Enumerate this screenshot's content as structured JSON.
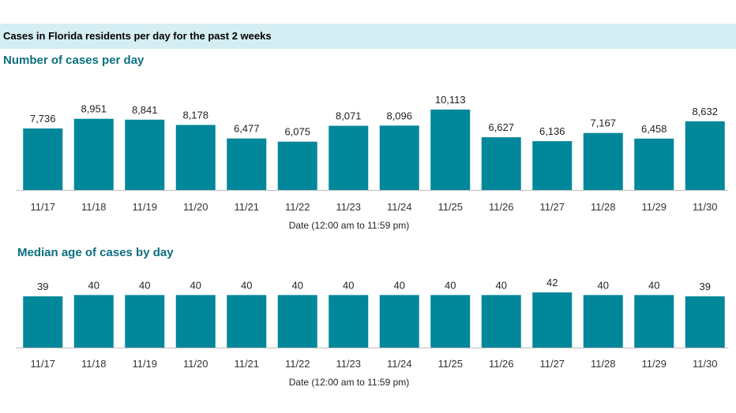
{
  "banner": {
    "title": "Cases in Florida residents per day for the past 2 weeks"
  },
  "colors": {
    "bar": "#00879a",
    "axis": "#bdbdbd",
    "banner_bg": "#d5eef3",
    "heading": "#0d6f80"
  },
  "chart_data": [
    {
      "type": "bar",
      "title": "Number of cases per day",
      "xlabel": "Date (12:00 am to 11:59 pm)",
      "ylabel": "",
      "categories": [
        "11/17",
        "11/18",
        "11/19",
        "11/20",
        "11/21",
        "11/22",
        "11/23",
        "11/24",
        "11/25",
        "11/26",
        "11/27",
        "11/28",
        "11/29",
        "11/30"
      ],
      "values": [
        7736,
        8951,
        8841,
        8178,
        6477,
        6075,
        8071,
        8096,
        10113,
        6627,
        6136,
        7167,
        6458,
        8632
      ],
      "value_labels": [
        "7,736",
        "8,951",
        "8,841",
        "8,178",
        "6,477",
        "6,075",
        "8,071",
        "8,096",
        "10,113",
        "6,627",
        "6,136",
        "7,167",
        "6,458",
        "8,632"
      ],
      "ylim": [
        0,
        10113
      ],
      "grid": false
    },
    {
      "type": "bar",
      "title": "Median age of cases by day",
      "xlabel": "Date (12:00 am to 11:59 pm)",
      "ylabel": "",
      "categories": [
        "11/17",
        "11/18",
        "11/19",
        "11/20",
        "11/21",
        "11/22",
        "11/23",
        "11/24",
        "11/25",
        "11/26",
        "11/27",
        "11/28",
        "11/29",
        "11/30"
      ],
      "values": [
        39,
        40,
        40,
        40,
        40,
        40,
        40,
        40,
        40,
        40,
        42,
        40,
        40,
        39
      ],
      "value_labels": [
        "39",
        "40",
        "40",
        "40",
        "40",
        "40",
        "40",
        "40",
        "40",
        "40",
        "42",
        "40",
        "40",
        "39"
      ],
      "ylim": [
        0,
        42
      ],
      "grid": false
    }
  ]
}
